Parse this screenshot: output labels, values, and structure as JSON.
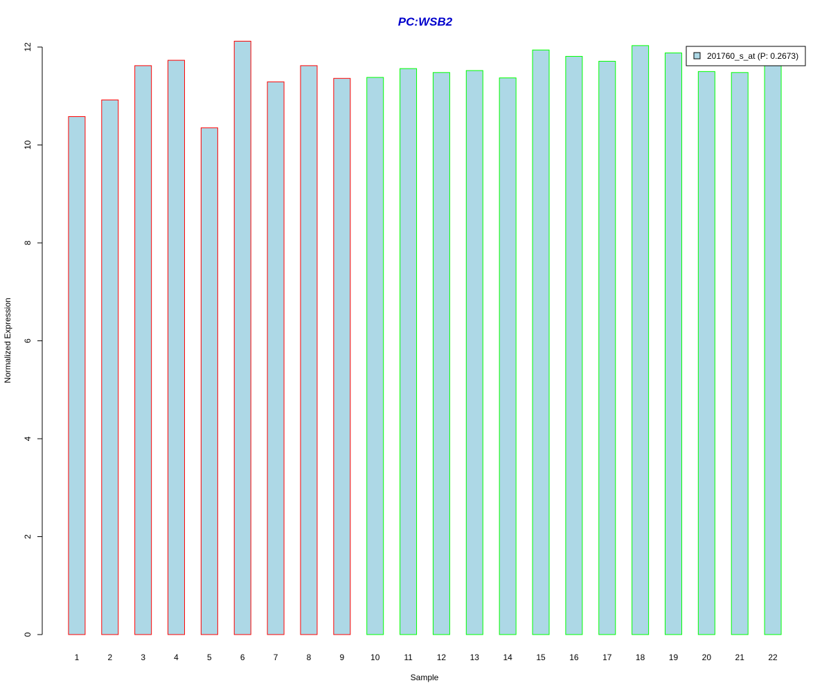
{
  "chart_data": {
    "type": "bar",
    "title": "PC:WSB2",
    "title_color": "#0000CC",
    "xlabel": "Sample",
    "ylabel": "Normalized Expression",
    "categories": [
      "1",
      "2",
      "3",
      "4",
      "5",
      "6",
      "7",
      "8",
      "9",
      "10",
      "11",
      "12",
      "13",
      "14",
      "15",
      "16",
      "17",
      "18",
      "19",
      "20",
      "21",
      "22"
    ],
    "series": [
      {
        "name": "201760_s_at (P: 0.2673)",
        "values": [
          10.58,
          10.92,
          11.62,
          11.73,
          10.35,
          12.12,
          11.29,
          11.62,
          11.36,
          11.38,
          11.56,
          11.48,
          11.52,
          11.37,
          11.94,
          11.81,
          11.71,
          12.03,
          11.88,
          11.5,
          11.48,
          11.68
        ],
        "fill": "#ADD8E6"
      }
    ],
    "bar_border_colors": [
      "#FF0000",
      "#FF0000",
      "#FF0000",
      "#FF0000",
      "#FF0000",
      "#FF0000",
      "#FF0000",
      "#FF0000",
      "#FF0000",
      "#00FF00",
      "#00FF00",
      "#00FF00",
      "#00FF00",
      "#00FF00",
      "#00FF00",
      "#00FF00",
      "#00FF00",
      "#00FF00",
      "#00FF00",
      "#00FF00",
      "#00FF00",
      "#00FF00"
    ],
    "ylim": [
      0,
      12
    ],
    "yticks": [
      0,
      2,
      4,
      6,
      8,
      10,
      12
    ],
    "grid": false,
    "legend_position": "top-right"
  }
}
